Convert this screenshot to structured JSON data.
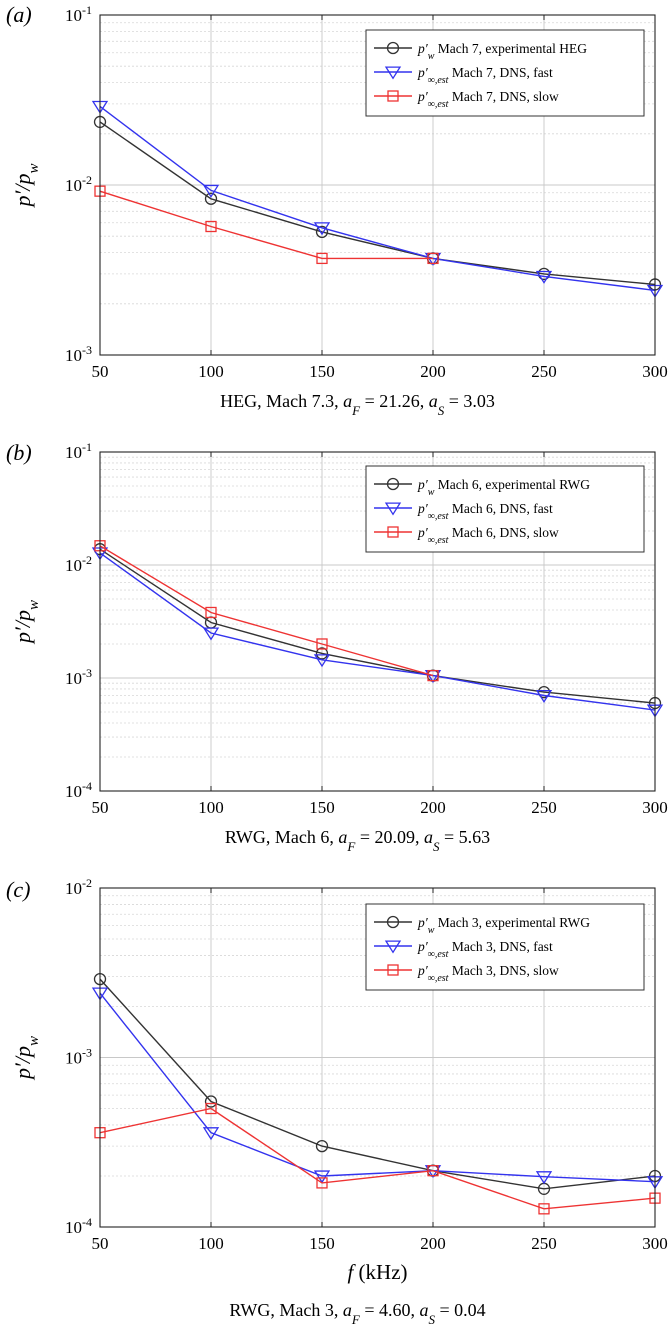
{
  "xlabel": "f (kHz)",
  "chart_data": [
    {
      "type": "line",
      "panel_label": "(a)",
      "ylabel": "p′/p_w",
      "yscale": "log",
      "ylim": [
        0.001,
        0.1
      ],
      "xlim": [
        50,
        300
      ],
      "grid": true,
      "legend_position": "top-right",
      "x": [
        50,
        100,
        150,
        200,
        250,
        300
      ],
      "x_tick_labels": [
        "50",
        "100",
        "150",
        "200",
        "250",
        "300"
      ],
      "y_tick_labels": [
        {
          "base": "10",
          "exp": "-3"
        },
        {
          "base": "10",
          "exp": "-2"
        },
        {
          "base": "10",
          "exp": "-1"
        }
      ],
      "caption": {
        "prefix": "HEG, Mach 7.3, ",
        "aF": "21.26",
        "aS": "3.03"
      },
      "series": [
        {
          "name": "Mach 7, experimental HEG",
          "symbol": "p′w",
          "marker": "circle",
          "color": "#333333",
          "values": [
            0.0235,
            0.0083,
            0.0053,
            0.0037,
            0.003,
            0.0026
          ]
        },
        {
          "name": "Mach 7, DNS, fast",
          "symbol": "p′∞,est",
          "marker": "triangle-down",
          "color": "#3333ee",
          "values": [
            0.029,
            0.0093,
            0.0056,
            0.0037,
            0.0029,
            0.0024
          ]
        },
        {
          "name": "Mach 7, DNS, slow",
          "symbol": "p′∞,est",
          "marker": "square",
          "color": "#ee3333",
          "values": [
            0.0092,
            0.0057,
            0.0037,
            0.0037,
            null,
            null
          ]
        }
      ]
    },
    {
      "type": "line",
      "panel_label": "(b)",
      "ylabel": "p′/p_w",
      "yscale": "log",
      "ylim": [
        0.0001,
        0.1
      ],
      "xlim": [
        50,
        300
      ],
      "grid": true,
      "legend_position": "top-right",
      "x": [
        50,
        100,
        150,
        200,
        250,
        300
      ],
      "x_tick_labels": [
        "50",
        "100",
        "150",
        "200",
        "250",
        "300"
      ],
      "y_tick_labels": [
        {
          "base": "10",
          "exp": "-4"
        },
        {
          "base": "10",
          "exp": "-3"
        },
        {
          "base": "10",
          "exp": "-2"
        },
        {
          "base": "10",
          "exp": "-1"
        }
      ],
      "caption": {
        "prefix": "RWG, Mach 6, ",
        "aF": "20.09",
        "aS": "5.63"
      },
      "series": [
        {
          "name": "Mach 6, experimental RWG",
          "symbol": "p′w",
          "marker": "circle",
          "color": "#333333",
          "values": [
            0.0138,
            0.0031,
            0.00165,
            0.00105,
            0.00075,
            0.0006
          ]
        },
        {
          "name": "Mach 6, DNS, fast",
          "symbol": "p′∞,est",
          "marker": "triangle-down",
          "color": "#3333ee",
          "values": [
            0.0128,
            0.0025,
            0.00145,
            0.00105,
            0.0007,
            0.00052
          ]
        },
        {
          "name": "Mach 6, DNS, slow",
          "symbol": "p′∞,est",
          "marker": "square",
          "color": "#ee3333",
          "values": [
            0.0148,
            0.0038,
            0.002,
            0.00105,
            null,
            null
          ]
        }
      ]
    },
    {
      "type": "line",
      "panel_label": "(c)",
      "ylabel": "p′/p_w",
      "yscale": "log",
      "ylim": [
        0.0001,
        0.01
      ],
      "xlim": [
        50,
        300
      ],
      "grid": true,
      "legend_position": "top-right",
      "x": [
        50,
        100,
        150,
        200,
        250,
        300
      ],
      "x_tick_labels": [
        "50",
        "100",
        "150",
        "200",
        "250",
        "300"
      ],
      "y_tick_labels": [
        {
          "base": "10",
          "exp": "-4"
        },
        {
          "base": "10",
          "exp": "-3"
        },
        {
          "base": "10",
          "exp": "-2"
        }
      ],
      "caption": {
        "prefix": "RWG, Mach 3, ",
        "aF": "4.60",
        "aS": "0.04"
      },
      "series": [
        {
          "name": "Mach 3, experimental RWG",
          "symbol": "p′w",
          "marker": "circle",
          "color": "#333333",
          "values": [
            0.0029,
            0.00055,
            0.0003,
            0.000215,
            0.000168,
            0.0002
          ]
        },
        {
          "name": "Mach 3, DNS, fast",
          "symbol": "p′∞,est",
          "marker": "triangle-down",
          "color": "#3333ee",
          "values": [
            0.0024,
            0.00036,
            0.0002,
            0.000215,
            0.000198,
            0.000185
          ]
        },
        {
          "name": "Mach 3, DNS, slow",
          "symbol": "p′∞,est",
          "marker": "square",
          "color": "#ee3333",
          "values": [
            0.00036,
            0.0005,
            0.000182,
            0.000215,
            0.000128,
            0.000148
          ]
        }
      ]
    }
  ]
}
